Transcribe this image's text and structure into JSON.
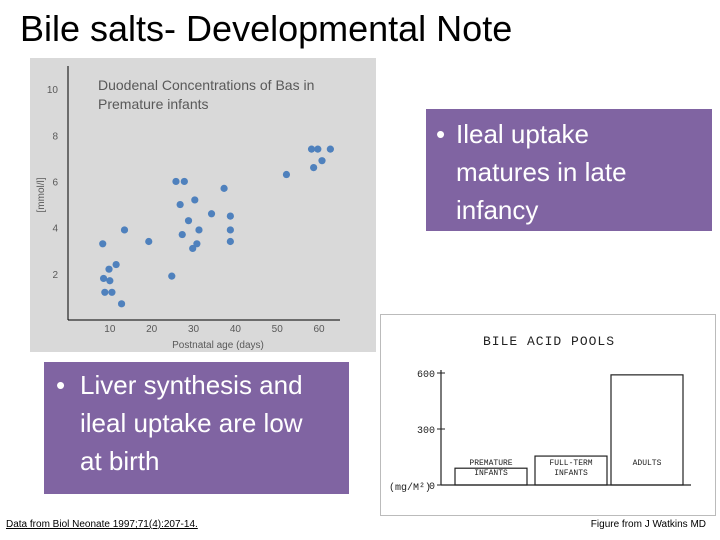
{
  "slide": {
    "title": "Bile salts- Developmental Note",
    "callout_ileal": "Ileal uptake\nmatures in late\ninfancy",
    "callout_liver": "Liver synthesis and\nileal uptake are low\nat birth",
    "bullet": "•",
    "footnote_left": "Data from Biol Neonate 1997;71(4):207-14.",
    "footnote_right": "Figure from J Watkins MD"
  },
  "colors": {
    "accent": "#8064a2",
    "dot": "#4f81bd",
    "panel": "#d9d9d9"
  },
  "chart_data": [
    {
      "type": "scatter",
      "title": "Duodenal Concentrations of Bas in Premature infants",
      "xlabel": "Postnatal age (days)",
      "ylabel": "[mmol/l]",
      "xticks": [
        "10",
        "20",
        "30",
        "40",
        "50",
        "60"
      ],
      "yticks": [
        "2",
        "4",
        "6",
        "8",
        "10"
      ],
      "xlim": [
        0,
        65
      ],
      "ylim": [
        0,
        11
      ],
      "grid": false,
      "points": [
        {
          "x": 8.3,
          "y": 3.3
        },
        {
          "x": 8.5,
          "y": 1.8
        },
        {
          "x": 8.8,
          "y": 1.2
        },
        {
          "x": 9.8,
          "y": 2.2
        },
        {
          "x": 10.0,
          "y": 1.7
        },
        {
          "x": 10.5,
          "y": 1.2
        },
        {
          "x": 11.5,
          "y": 2.4
        },
        {
          "x": 12.8,
          "y": 0.7
        },
        {
          "x": 13.5,
          "y": 3.9
        },
        {
          "x": 19.3,
          "y": 3.4
        },
        {
          "x": 24.8,
          "y": 1.9
        },
        {
          "x": 25.8,
          "y": 6.0
        },
        {
          "x": 26.8,
          "y": 5.0
        },
        {
          "x": 27.3,
          "y": 3.7
        },
        {
          "x": 27.8,
          "y": 6.0
        },
        {
          "x": 28.8,
          "y": 4.3
        },
        {
          "x": 29.8,
          "y": 3.1
        },
        {
          "x": 30.3,
          "y": 5.2
        },
        {
          "x": 30.8,
          "y": 3.3
        },
        {
          "x": 31.3,
          "y": 3.9
        },
        {
          "x": 34.3,
          "y": 4.6
        },
        {
          "x": 37.3,
          "y": 5.7
        },
        {
          "x": 38.8,
          "y": 4.5
        },
        {
          "x": 38.8,
          "y": 3.9
        },
        {
          "x": 38.8,
          "y": 3.4
        },
        {
          "x": 52.2,
          "y": 6.3
        },
        {
          "x": 58.2,
          "y": 7.4
        },
        {
          "x": 58.7,
          "y": 6.6
        },
        {
          "x": 59.7,
          "y": 7.4
        },
        {
          "x": 60.7,
          "y": 6.9
        },
        {
          "x": 62.7,
          "y": 7.4
        }
      ]
    },
    {
      "type": "bar",
      "title": "BILE ACID POOLS",
      "ylabel": "(mg/M²)",
      "yticks": [
        "0",
        "300",
        "600"
      ],
      "ylim": [
        0,
        600
      ],
      "categories": [
        "PREMATURE\nINFANTS",
        "FULL-TERM\nINFANTS",
        "ADULTS"
      ],
      "values": [
        90,
        155,
        590
      ]
    }
  ]
}
